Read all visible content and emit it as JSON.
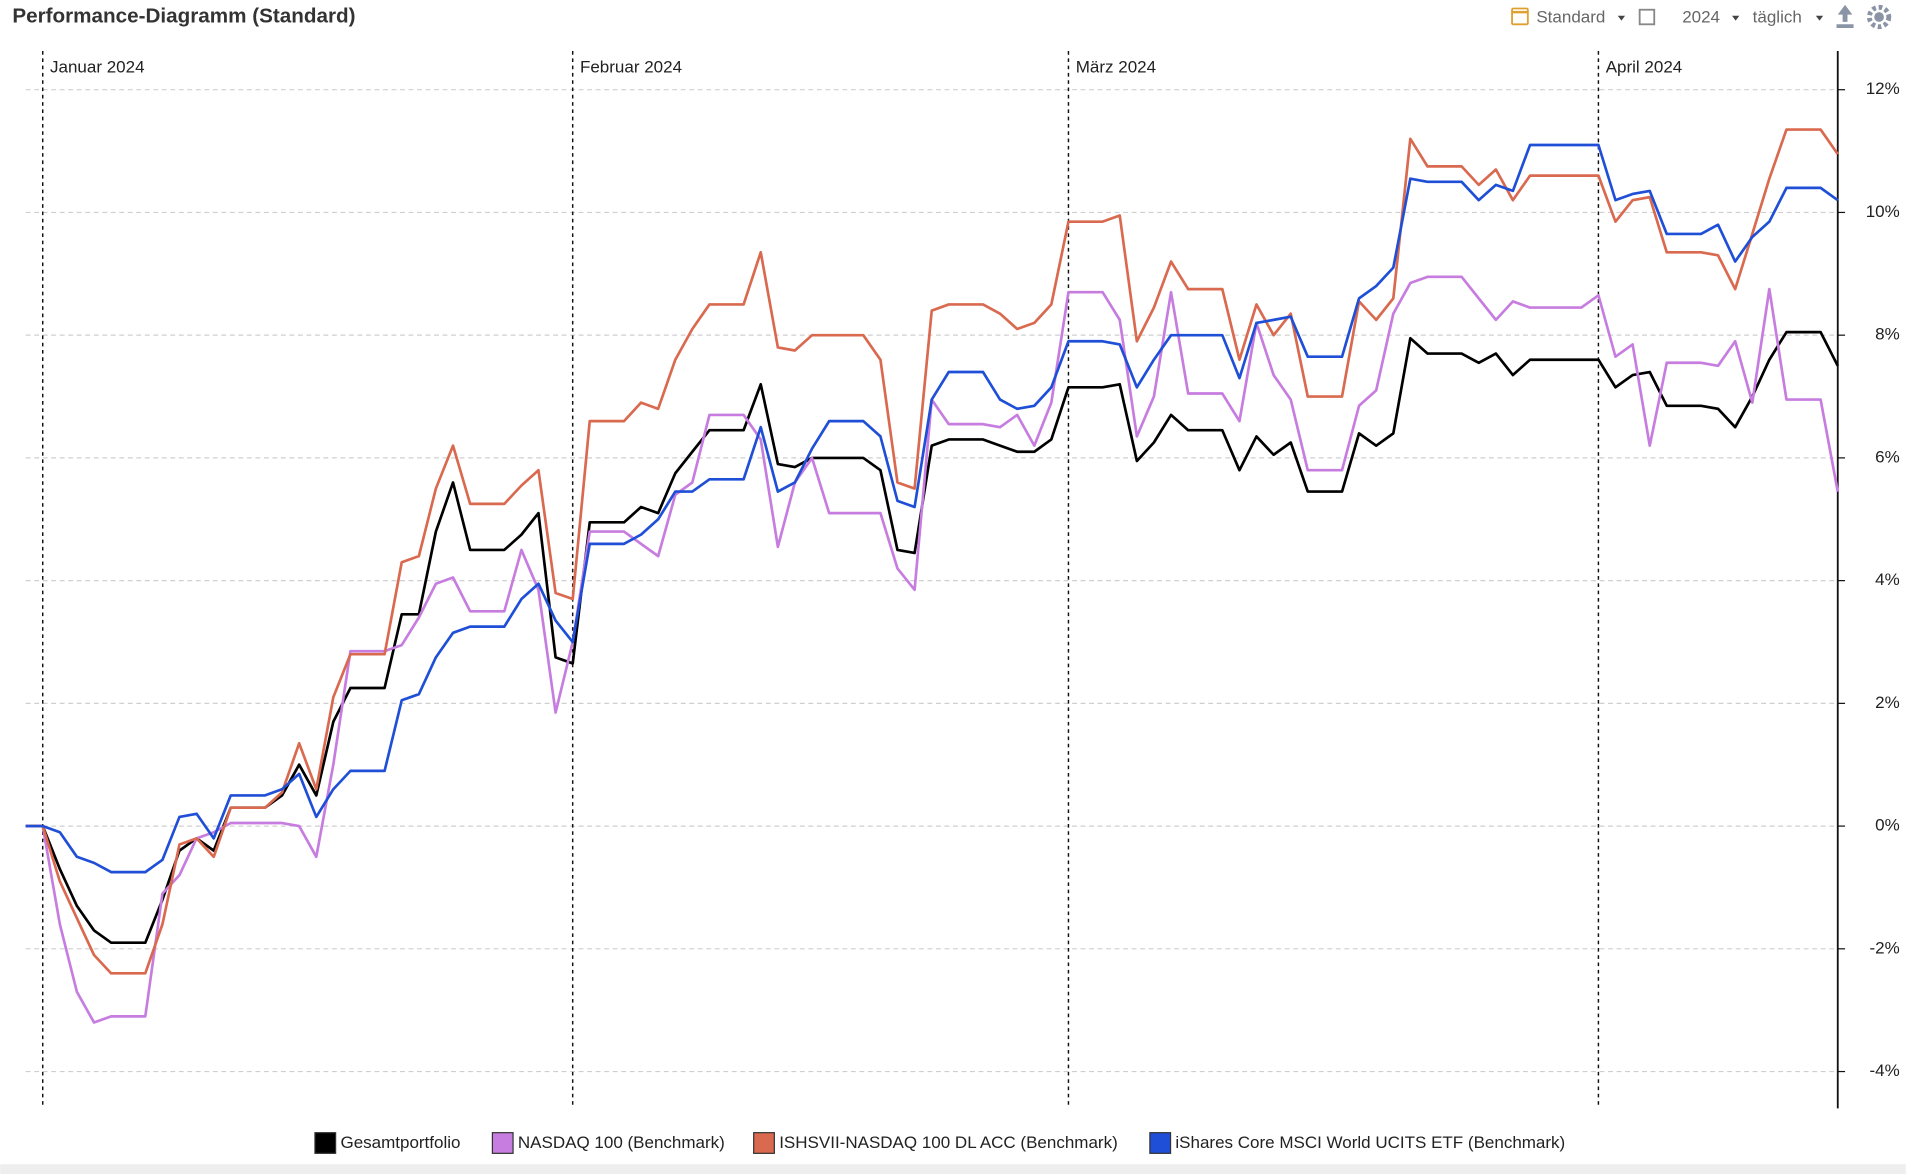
{
  "chart_data": {
    "type": "line",
    "title": "Performance-Diagramm (Standard)",
    "toolbar": {
      "view": "Standard",
      "year": "2024",
      "interval": "täglich"
    },
    "legend": "bottom",
    "grid": true,
    "y_axis_side": "right",
    "ylim": [
      -4.6,
      12.63
    ],
    "yticks": [
      {
        "value": 12,
        "label": "12%"
      },
      {
        "value": 10,
        "label": "10%"
      },
      {
        "value": 8,
        "label": "8%"
      },
      {
        "value": 6,
        "label": "6%"
      },
      {
        "value": 4,
        "label": "4%"
      },
      {
        "value": 2,
        "label": "2%"
      },
      {
        "value": 0,
        "label": "0%"
      },
      {
        "value": -2,
        "label": "-2%"
      },
      {
        "value": -4,
        "label": "-4%"
      }
    ],
    "categories": [
      null,
      "Januar 2024",
      null,
      null,
      null,
      null,
      null,
      null,
      null,
      null,
      null,
      null,
      null,
      null,
      null,
      null,
      null,
      null,
      null,
      null,
      null,
      null,
      null,
      null,
      null,
      null,
      null,
      null,
      null,
      null,
      null,
      null,
      "Februar 2024",
      null,
      null,
      null,
      null,
      null,
      null,
      null,
      null,
      null,
      null,
      null,
      null,
      null,
      null,
      null,
      null,
      null,
      null,
      null,
      null,
      null,
      null,
      null,
      null,
      null,
      null,
      null,
      null,
      "März 2024",
      null,
      null,
      null,
      null,
      null,
      null,
      null,
      null,
      null,
      null,
      null,
      null,
      null,
      null,
      null,
      null,
      null,
      null,
      null,
      null,
      null,
      null,
      null,
      null,
      null,
      null,
      null,
      null,
      null,
      null,
      "April 2024",
      null,
      null,
      null,
      null,
      null,
      null,
      null,
      null,
      null,
      null,
      null,
      null,
      null,
      null
    ],
    "series": [
      {
        "name": "Gesamtportfolio",
        "color": "#000000",
        "values": [
          0,
          0,
          -0.7,
          -1.3,
          -1.7,
          -1.9,
          -1.9,
          -1.9,
          -1.2,
          -0.4,
          -0.2,
          -0.4,
          0.3,
          0.3,
          0.3,
          0.5,
          1.0,
          0.5,
          1.7,
          2.25,
          2.25,
          2.25,
          3.45,
          3.45,
          4.8,
          5.6,
          4.5,
          4.5,
          4.5,
          4.75,
          5.1,
          2.75,
          2.65,
          4.95,
          4.95,
          4.95,
          5.2,
          5.1,
          5.75,
          6.1,
          6.45,
          6.45,
          6.45,
          7.2,
          5.9,
          5.85,
          6.0,
          6.0,
          6.0,
          6.0,
          5.8,
          4.5,
          4.45,
          6.2,
          6.3,
          6.3,
          6.3,
          6.2,
          6.1,
          6.1,
          6.3,
          7.15,
          7.15,
          7.15,
          7.2,
          5.95,
          6.25,
          6.7,
          6.45,
          6.45,
          6.45,
          5.8,
          6.35,
          6.05,
          6.25,
          5.45,
          5.45,
          5.45,
          6.4,
          6.2,
          6.4,
          7.95,
          7.7,
          7.7,
          7.7,
          7.55,
          7.7,
          7.35,
          7.6,
          7.6,
          7.6,
          7.6,
          7.6,
          7.15,
          7.35,
          7.4,
          6.85,
          6.85,
          6.85,
          6.8,
          6.5,
          7.0,
          7.6,
          8.05,
          8.05,
          8.05,
          7.5
        ]
      },
      {
        "name": "NASDAQ 100 (Benchmark)",
        "color": "#c77ddf",
        "values": [
          0,
          0,
          -1.6,
          -2.7,
          -3.2,
          -3.1,
          -3.1,
          -3.1,
          -1.1,
          -0.8,
          -0.2,
          -0.1,
          0.05,
          0.05,
          0.05,
          0.05,
          0.0,
          -0.5,
          1.0,
          2.85,
          2.85,
          2.85,
          2.95,
          3.4,
          3.95,
          4.05,
          3.5,
          3.5,
          3.5,
          4.5,
          3.85,
          1.85,
          3.0,
          4.8,
          4.8,
          4.8,
          4.6,
          4.4,
          5.4,
          5.6,
          6.7,
          6.7,
          6.7,
          6.3,
          4.55,
          5.6,
          6.0,
          5.1,
          5.1,
          5.1,
          5.1,
          4.2,
          3.85,
          6.95,
          6.55,
          6.55,
          6.55,
          6.5,
          6.7,
          6.2,
          6.9,
          8.7,
          8.7,
          8.7,
          8.25,
          6.35,
          7.0,
          8.7,
          7.05,
          7.05,
          7.05,
          6.6,
          8.2,
          7.35,
          6.95,
          5.8,
          5.8,
          5.8,
          6.85,
          7.1,
          8.35,
          8.85,
          8.95,
          8.95,
          8.95,
          8.6,
          8.25,
          8.55,
          8.45,
          8.45,
          8.45,
          8.45,
          8.65,
          7.65,
          7.85,
          6.2,
          7.55,
          7.55,
          7.55,
          7.5,
          7.9,
          6.9,
          8.75,
          6.95,
          6.95,
          6.95,
          5.45
        ]
      },
      {
        "name": "ISHSVII-NASDAQ 100 DL ACC (Benchmark)",
        "color": "#d9694f",
        "values": [
          0,
          0,
          -0.9,
          -1.5,
          -2.1,
          -2.4,
          -2.4,
          -2.4,
          -1.6,
          -0.3,
          -0.2,
          -0.5,
          0.3,
          0.3,
          0.3,
          0.55,
          1.35,
          0.6,
          2.1,
          2.8,
          2.8,
          2.8,
          4.3,
          4.4,
          5.5,
          6.2,
          5.25,
          5.25,
          5.25,
          5.55,
          5.8,
          3.8,
          3.7,
          6.6,
          6.6,
          6.6,
          6.9,
          6.8,
          7.6,
          8.1,
          8.5,
          8.5,
          8.5,
          9.35,
          7.8,
          7.75,
          8.0,
          8.0,
          8.0,
          8.0,
          7.6,
          5.6,
          5.5,
          8.4,
          8.5,
          8.5,
          8.5,
          8.35,
          8.1,
          8.2,
          8.5,
          9.85,
          9.85,
          9.85,
          9.95,
          7.9,
          8.45,
          9.2,
          8.75,
          8.75,
          8.75,
          7.6,
          8.5,
          8.0,
          8.35,
          7.0,
          7.0,
          7.0,
          8.55,
          8.25,
          8.6,
          11.2,
          10.75,
          10.75,
          10.75,
          10.45,
          10.7,
          10.2,
          10.6,
          10.6,
          10.6,
          10.6,
          10.6,
          9.85,
          10.2,
          10.25,
          9.35,
          9.35,
          9.35,
          9.3,
          8.75,
          9.65,
          10.55,
          11.35,
          11.35,
          11.35,
          10.95
        ]
      },
      {
        "name": "iShares Core MSCI World UCITS ETF (Benchmark)",
        "color": "#1f4fd6",
        "values": [
          0,
          0,
          -0.1,
          -0.5,
          -0.6,
          -0.75,
          -0.75,
          -0.75,
          -0.55,
          0.15,
          0.2,
          -0.2,
          0.5,
          0.5,
          0.5,
          0.6,
          0.85,
          0.15,
          0.6,
          0.9,
          0.9,
          0.9,
          2.05,
          2.15,
          2.75,
          3.15,
          3.25,
          3.25,
          3.25,
          3.7,
          3.95,
          3.35,
          3.0,
          4.6,
          4.6,
          4.6,
          4.75,
          5.0,
          5.45,
          5.45,
          5.65,
          5.65,
          5.65,
          6.5,
          5.45,
          5.6,
          6.15,
          6.6,
          6.6,
          6.6,
          6.35,
          5.3,
          5.2,
          6.95,
          7.4,
          7.4,
          7.4,
          6.95,
          6.8,
          6.85,
          7.15,
          7.9,
          7.9,
          7.9,
          7.85,
          7.15,
          7.6,
          8.0,
          8.0,
          8.0,
          8.0,
          7.3,
          8.2,
          8.25,
          8.3,
          7.65,
          7.65,
          7.65,
          8.6,
          8.8,
          9.1,
          10.55,
          10.5,
          10.5,
          10.5,
          10.2,
          10.45,
          10.35,
          11.1,
          11.1,
          11.1,
          11.1,
          11.1,
          10.2,
          10.3,
          10.35,
          9.65,
          9.65,
          9.65,
          9.8,
          9.2,
          9.6,
          9.85,
          10.4,
          10.4,
          10.4,
          10.2
        ]
      }
    ]
  }
}
